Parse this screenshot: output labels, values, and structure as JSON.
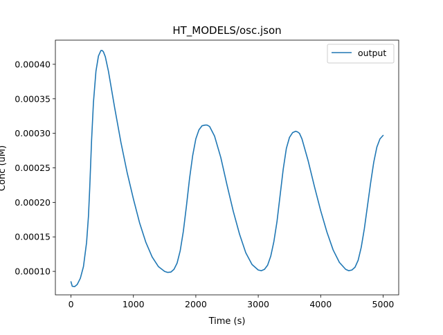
{
  "chart_data": {
    "type": "line",
    "title": "HT_MODELS/osc.json",
    "xlabel": "Time (s)",
    "ylabel": "Conc (uM)",
    "xlim": [
      -250,
      5250
    ],
    "ylim": [
      6.6e-05,
      0.000435
    ],
    "x_ticks": [
      0,
      1000,
      2000,
      3000,
      4000,
      5000
    ],
    "x_tick_labels": [
      "0",
      "1000",
      "2000",
      "3000",
      "4000",
      "5000"
    ],
    "y_ticks": [
      0.0001,
      0.00015,
      0.0002,
      0.00025,
      0.0003,
      0.00035,
      0.0004
    ],
    "y_tick_labels": [
      "0.00010",
      "0.00015",
      "0.00020",
      "0.00025",
      "0.00030",
      "0.00035",
      "0.00040"
    ],
    "grid": false,
    "legend_position": "top-right",
    "series": [
      {
        "name": "output",
        "color": "#1f77b4",
        "x": [
          0,
          20,
          60,
          100,
          150,
          200,
          250,
          280,
          300,
          330,
          360,
          400,
          440,
          480,
          500,
          520,
          550,
          600,
          700,
          800,
          900,
          1000,
          1100,
          1200,
          1300,
          1400,
          1500,
          1550,
          1600,
          1650,
          1700,
          1750,
          1800,
          1850,
          1900,
          1950,
          2000,
          2050,
          2100,
          2150,
          2180,
          2220,
          2300,
          2400,
          2500,
          2600,
          2700,
          2800,
          2900,
          3000,
          3050,
          3100,
          3150,
          3200,
          3250,
          3300,
          3350,
          3400,
          3450,
          3500,
          3550,
          3600,
          3630,
          3660,
          3700,
          3800,
          3900,
          4000,
          4100,
          4200,
          4300,
          4400,
          4450,
          4500,
          4550,
          4600,
          4650,
          4700,
          4750,
          4800,
          4850,
          4900,
          4950,
          5000
        ],
        "y": [
          8.5e-05,
          7.85e-05,
          7.8e-05,
          8.1e-05,
          9e-05,
          0.000107,
          0.000142,
          0.00018,
          0.00022,
          0.00029,
          0.000345,
          0.00039,
          0.000412,
          0.00042,
          0.00042,
          0.000418,
          0.000411,
          0.00039,
          0.000337,
          0.000287,
          0.000243,
          0.000205,
          0.00017,
          0.000142,
          0.000121,
          0.000107,
          0.0001,
          9.85e-05,
          9.9e-05,
          0.000103,
          0.000112,
          0.00013,
          0.000158,
          0.000195,
          0.000235,
          0.000268,
          0.000292,
          0.000305,
          0.000311,
          0.000312,
          0.000312,
          0.00031,
          0.000296,
          0.000265,
          0.000225,
          0.000187,
          0.000154,
          0.000127,
          0.00011,
          0.000102,
          0.000101,
          0.000103,
          0.000109,
          0.000122,
          0.000143,
          0.000172,
          0.00021,
          0.000248,
          0.000278,
          0.000294,
          0.000301,
          0.000303,
          0.000302,
          0.0003,
          0.000292,
          0.00026,
          0.000223,
          0.000188,
          0.000157,
          0.000131,
          0.000113,
          0.000103,
          0.000101,
          0.000102,
          0.000106,
          0.000116,
          0.000135,
          0.000162,
          0.000195,
          0.000228,
          0.000258,
          0.00028,
          0.000292,
          0.000297
        ]
      }
    ]
  }
}
